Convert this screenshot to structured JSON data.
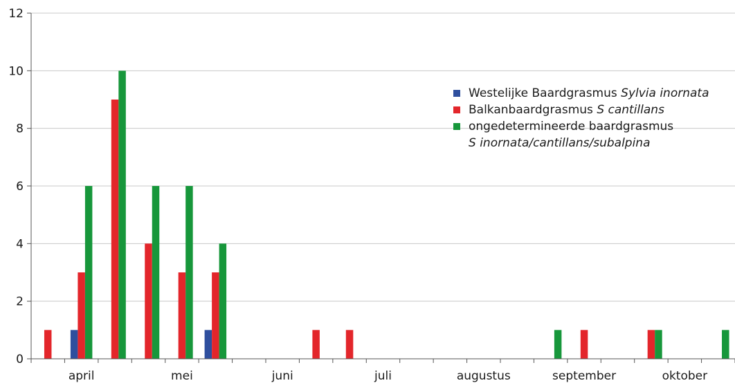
{
  "chart_data": {
    "type": "bar",
    "title": "",
    "xlabel": "",
    "ylabel": "",
    "ylim": [
      0,
      12
    ],
    "yticks": [
      0,
      2,
      4,
      6,
      8,
      10,
      12
    ],
    "grid": "horizontal",
    "legend_position": "top-right",
    "months": [
      "april",
      "mei",
      "juni",
      "juli",
      "augustus",
      "september",
      "oktober"
    ],
    "periods_per_month": 3,
    "series": [
      {
        "name_parts": [
          {
            "text": "Westelijke Baardgrasmus ",
            "italic": false
          },
          {
            "text": "Sylvia inornata",
            "italic": true
          }
        ],
        "color": "#2f4f9e",
        "values": [
          0,
          1,
          0,
          0,
          0,
          1,
          0,
          0,
          0,
          0,
          0,
          0,
          0,
          0,
          0,
          0,
          0,
          0,
          0,
          0,
          0
        ]
      },
      {
        "name_parts": [
          {
            "text": "Balkanbaardgrasmus ",
            "italic": false
          },
          {
            "text": "S cantillans",
            "italic": true
          }
        ],
        "color": "#e3262b",
        "values": [
          1,
          3,
          9,
          4,
          3,
          3,
          0,
          0,
          1,
          1,
          0,
          0,
          0,
          0,
          0,
          0,
          1,
          0,
          1,
          0,
          0
        ]
      },
      {
        "name_parts": [
          {
            "text": "ongedetermineerde baardgrasmus",
            "italic": false
          }
        ],
        "name_line2_parts": [
          {
            "text": "S inornata/cantillans/subalpina",
            "italic": true
          }
        ],
        "color": "#17973b",
        "values": [
          0,
          6,
          10,
          6,
          6,
          4,
          0,
          0,
          0,
          0,
          0,
          0,
          0,
          0,
          0,
          1,
          0,
          0,
          1,
          0,
          1
        ]
      }
    ]
  }
}
